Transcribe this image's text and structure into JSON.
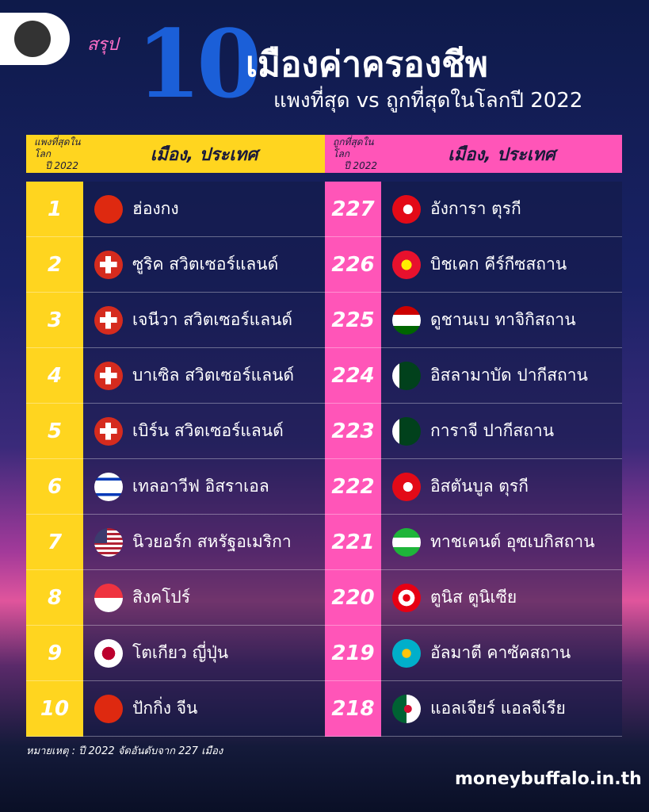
{
  "header": {
    "summary": "สรุป",
    "number": "10",
    "title": "เมืองค่าครองชีพ",
    "subtitle": "แพงที่สุด vs ถูกที่สุดในโลกปี 2022"
  },
  "table": {
    "columns": [
      [
        "แพงที่สุดในโลก",
        "ปี 2022"
      ],
      "เมือง, ประเทศ",
      [
        "ถูกที่สุดในโลก",
        "ปี 2022"
      ],
      "เมือง, ประเทศ"
    ],
    "rows": [
      [
        1,
        "ฮ่องกง",
        227,
        "อังการา ตุรกี"
      ],
      [
        2,
        "ซูริค สวิตเซอร์แลนด์",
        226,
        "บิชเคก คีร์กีซสถาน"
      ],
      [
        3,
        "เจนีวา สวิตเซอร์แลนด์",
        225,
        "ดูชานเบ ทาจิกิสถาน"
      ],
      [
        4,
        "บาเซิล สวิตเซอร์แลนด์",
        224,
        "อิสลามาบัด ปากีสถาน"
      ],
      [
        5,
        "เบิร์น สวิตเซอร์แลนด์",
        223,
        "การาจี ปากีสถาน"
      ],
      [
        6,
        "เทลอาวีฟ อิสราเอล",
        222,
        "อิสตันบูล ตุรกี"
      ],
      [
        7,
        "นิวยอร์ก สหรัฐอเมริกา",
        221,
        "ทาชเคนต์ อุซเบกิสถาน"
      ],
      [
        8,
        "สิงคโปร์",
        220,
        "ตูนิส ตูนิเซีย"
      ],
      [
        9,
        "โตเกียว ญี่ปุ่น",
        219,
        "อัลมาตี คาซัคสถาน"
      ],
      [
        10,
        "ปักกิ่ง จีน",
        218,
        "แอลเจียร์ แอลจีเรีย"
      ]
    ]
  },
  "note": "หมายเหตุ : ปี 2022 จัดอันดับจาก 227 เมือง",
  "footer": "moneybuffalo.in.th"
}
